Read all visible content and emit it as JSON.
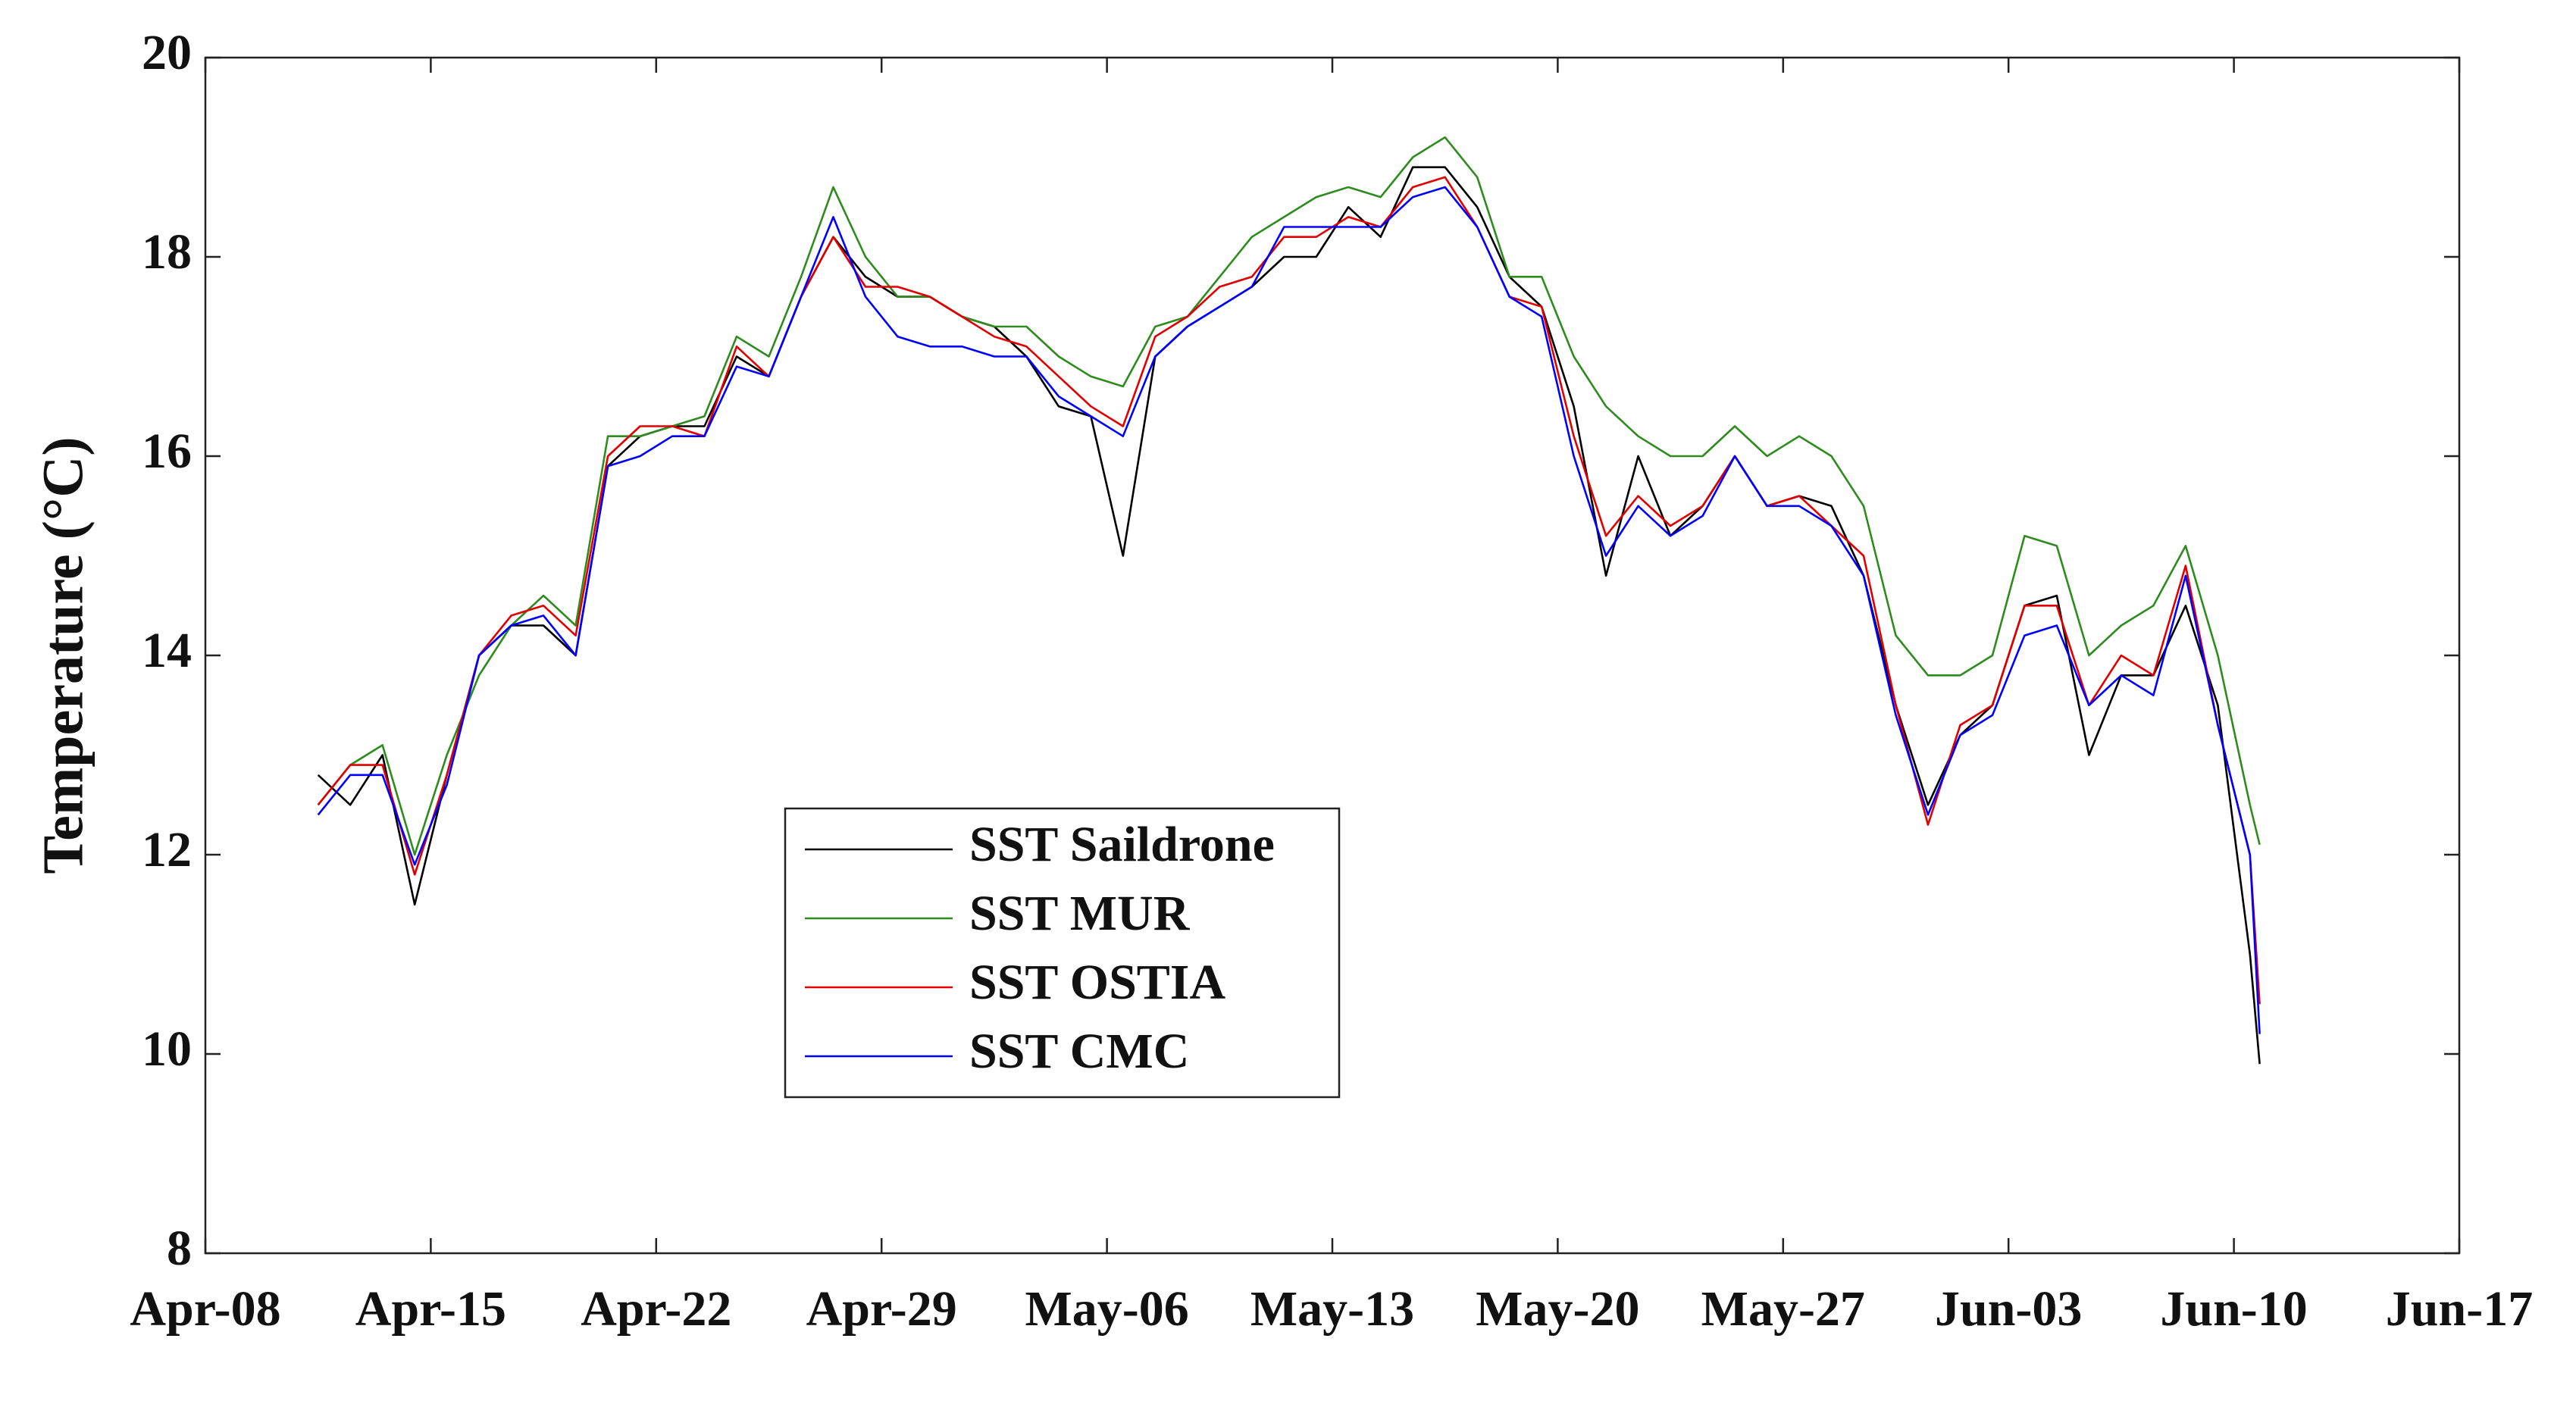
{
  "chart_data": {
    "type": "line",
    "ylabel": "Temperature (°C)",
    "x": [
      3.5,
      4.5,
      5.5,
      6.5,
      7.5,
      8.5,
      9.5,
      10.5,
      11.5,
      12.5,
      13.5,
      14.5,
      15.5,
      16.5,
      17.5,
      18.5,
      19.5,
      20.5,
      21.5,
      22.5,
      23.5,
      24.5,
      25.5,
      26.5,
      27.5,
      28.5,
      29.5,
      30.5,
      31.5,
      32.5,
      33.5,
      34.5,
      35.5,
      36.5,
      37.5,
      38.5,
      39.5,
      40.5,
      41.5,
      42.5,
      43.5,
      44.5,
      45.5,
      46.5,
      47.5,
      48.5,
      49.5,
      50.5,
      51.5,
      52.5,
      53.5,
      54.5,
      55.5,
      56.5,
      57.5,
      58.5,
      59.5,
      60.5,
      61.5,
      62.5,
      63.5,
      63.8
    ],
    "xlim": [
      0,
      70
    ],
    "xticks": [
      {
        "value": 0,
        "label": "Apr-08"
      },
      {
        "value": 7,
        "label": "Apr-15"
      },
      {
        "value": 14,
        "label": "Apr-22"
      },
      {
        "value": 21,
        "label": "Apr-29"
      },
      {
        "value": 28,
        "label": "May-06"
      },
      {
        "value": 35,
        "label": "May-13"
      },
      {
        "value": 42,
        "label": "May-20"
      },
      {
        "value": 49,
        "label": "May-27"
      },
      {
        "value": 56,
        "label": "Jun-03"
      },
      {
        "value": 63,
        "label": "Jun-10"
      },
      {
        "value": 70,
        "label": "Jun-17"
      }
    ],
    "ylim": [
      8,
      20
    ],
    "yticks": [
      8,
      10,
      12,
      14,
      16,
      18,
      20
    ],
    "series": [
      {
        "name": "SST Saildrone",
        "color": "#000000",
        "values": [
          12.8,
          12.5,
          13.0,
          11.5,
          12.8,
          14.0,
          14.3,
          14.3,
          14.0,
          15.9,
          16.2,
          16.3,
          16.3,
          17.0,
          16.8,
          17.6,
          18.2,
          17.8,
          17.6,
          17.6,
          17.4,
          17.3,
          17.0,
          16.5,
          16.4,
          15.0,
          17.0,
          17.3,
          17.5,
          17.7,
          18.0,
          18.0,
          18.5,
          18.2,
          18.9,
          18.9,
          18.5,
          17.8,
          17.5,
          16.5,
          14.8,
          16.0,
          15.2,
          15.5,
          16.0,
          15.5,
          15.6,
          15.5,
          14.8,
          13.5,
          12.5,
          13.2,
          13.5,
          14.5,
          14.6,
          13.0,
          13.8,
          13.8,
          14.5,
          13.5,
          11.0,
          9.9
        ]
      },
      {
        "name": "SST MUR",
        "color": "#2e8b1e",
        "values": [
          12.5,
          12.9,
          13.1,
          12.0,
          13.0,
          13.8,
          14.3,
          14.6,
          14.3,
          16.2,
          16.2,
          16.3,
          16.4,
          17.2,
          17.0,
          17.8,
          18.7,
          18.0,
          17.6,
          17.6,
          17.4,
          17.3,
          17.3,
          17.0,
          16.8,
          16.7,
          17.3,
          17.4,
          17.8,
          18.2,
          18.4,
          18.6,
          18.7,
          18.6,
          19.0,
          19.2,
          18.8,
          17.8,
          17.8,
          17.0,
          16.5,
          16.2,
          16.0,
          16.0,
          16.3,
          16.0,
          16.2,
          16.0,
          15.5,
          14.2,
          13.8,
          13.8,
          14.0,
          15.2,
          15.1,
          14.0,
          14.3,
          14.5,
          15.1,
          14.0,
          12.5,
          12.1
        ]
      },
      {
        "name": "SST OSTIA",
        "color": "#e00000",
        "values": [
          12.5,
          12.9,
          12.9,
          11.8,
          12.8,
          14.0,
          14.4,
          14.5,
          14.2,
          16.0,
          16.3,
          16.3,
          16.2,
          17.1,
          16.8,
          17.6,
          18.2,
          17.7,
          17.7,
          17.6,
          17.4,
          17.2,
          17.1,
          16.8,
          16.5,
          16.3,
          17.2,
          17.4,
          17.7,
          17.8,
          18.2,
          18.2,
          18.4,
          18.3,
          18.7,
          18.8,
          18.3,
          17.6,
          17.5,
          16.2,
          15.2,
          15.6,
          15.3,
          15.5,
          16.0,
          15.5,
          15.6,
          15.3,
          15.0,
          13.5,
          12.3,
          13.3,
          13.5,
          14.5,
          14.5,
          13.5,
          14.0,
          13.8,
          14.9,
          13.3,
          12.0,
          10.5
        ]
      },
      {
        "name": "SST CMC",
        "color": "#0000ff",
        "values": [
          12.4,
          12.8,
          12.8,
          11.9,
          12.7,
          14.0,
          14.3,
          14.4,
          14.0,
          15.9,
          16.0,
          16.2,
          16.2,
          16.9,
          16.8,
          17.6,
          18.4,
          17.6,
          17.2,
          17.1,
          17.1,
          17.0,
          17.0,
          16.6,
          16.4,
          16.2,
          17.0,
          17.3,
          17.5,
          17.7,
          18.3,
          18.3,
          18.3,
          18.3,
          18.6,
          18.7,
          18.3,
          17.6,
          17.4,
          16.0,
          15.0,
          15.5,
          15.2,
          15.4,
          16.0,
          15.5,
          15.5,
          15.3,
          14.8,
          13.4,
          12.4,
          13.2,
          13.4,
          14.2,
          14.3,
          13.5,
          13.8,
          13.6,
          14.8,
          13.3,
          12.0,
          10.2
        ]
      }
    ]
  }
}
